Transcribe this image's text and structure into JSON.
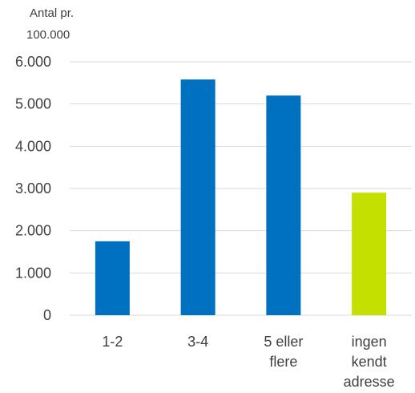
{
  "chart_data": {
    "type": "bar",
    "ylabel_lines": [
      "Antal pr.",
      "100.000"
    ],
    "categories": [
      [
        "1-2"
      ],
      [
        "3-4"
      ],
      [
        "5 eller",
        "flere"
      ],
      [
        "ingen",
        "kendt",
        "adresse"
      ]
    ],
    "values": [
      1750,
      5580,
      5200,
      2900
    ],
    "bar_colors": [
      "#0070C0",
      "#0070C0",
      "#0070C0",
      "#C3E000"
    ],
    "ylim": [
      0,
      6000
    ],
    "yticks": [
      0,
      1000,
      2000,
      3000,
      4000,
      5000,
      6000
    ],
    "ytick_labels": [
      "0",
      "1.000",
      "2.000",
      "3.000",
      "4.000",
      "5.000",
      "6.000"
    ],
    "grid": true,
    "gridline_color": "#D9D9D9"
  }
}
